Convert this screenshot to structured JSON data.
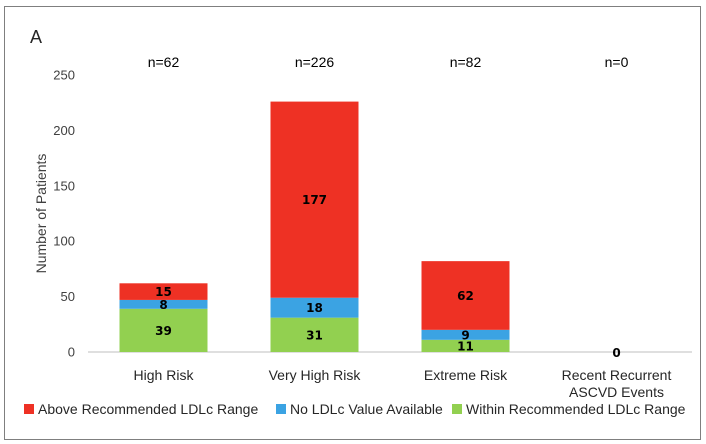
{
  "panel_letter": "A",
  "chart_data": {
    "type": "bar",
    "stacked": true,
    "categories": [
      "High Risk",
      "Very High Risk",
      "Extreme Risk",
      "Recent Recurrent ASCVD Events"
    ],
    "category_lines": [
      [
        "High Risk"
      ],
      [
        "Very High Risk"
      ],
      [
        "Extreme Risk"
      ],
      [
        "Recent Recurrent",
        "ASCVD Events"
      ]
    ],
    "n_labels": [
      "n=62",
      "n=226",
      "n=82",
      "n=0"
    ],
    "series": [
      {
        "name": "Within Recommended LDLc Range",
        "values": [
          39,
          31,
          11,
          0
        ],
        "color": "#92d050"
      },
      {
        "name": "No LDLc Value Available",
        "values": [
          8,
          18,
          9,
          0
        ],
        "color": "#3ba3e3"
      },
      {
        "name": "Above Recommended LDLc Range",
        "values": [
          15,
          177,
          62,
          0
        ],
        "color": "#ee3124"
      }
    ],
    "legend_order": [
      2,
      1,
      0
    ],
    "ylabel": "Number of Patients",
    "ylim": [
      0,
      250
    ],
    "yticks": [
      0,
      50,
      100,
      150,
      200,
      250
    ],
    "grid": false,
    "legend_position": "bottom"
  }
}
